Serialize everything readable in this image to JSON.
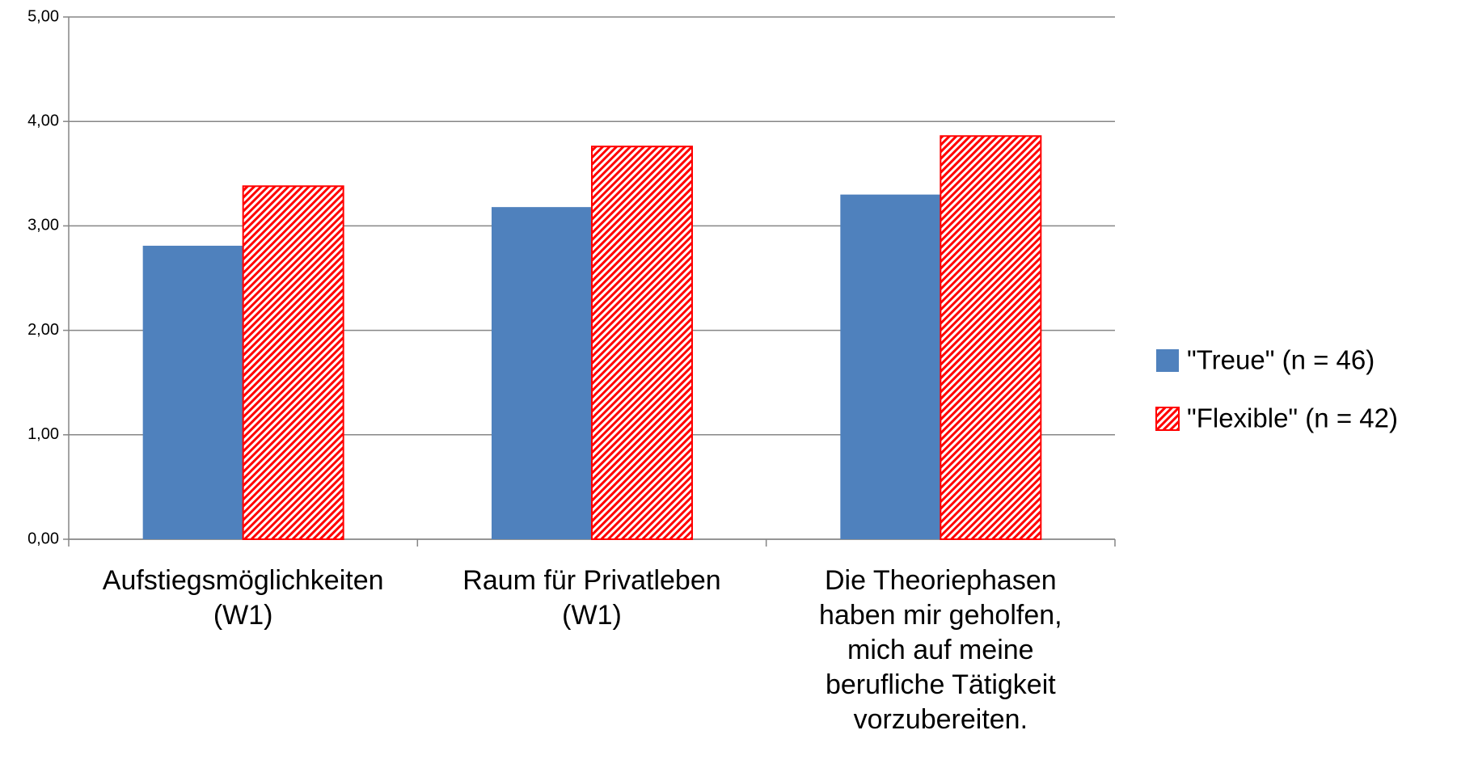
{
  "chart_data": {
    "type": "bar",
    "categories": [
      "Aufstiegsmöglichkeiten\n(W1)",
      "Raum für Privatleben\n(W1)",
      "Die Theoriephasen\nhaben mir geholfen,\nmich auf meine\nberufliche Tätigkeit\nvorzubereiten."
    ],
    "series": [
      {
        "name": "\"Treue\" (n = 46)",
        "color": "#4f81bd",
        "values": [
          2.81,
          3.18,
          3.3
        ]
      },
      {
        "name": "\"Flexible\" (n = 42)",
        "color": "#ff0000",
        "pattern": "diagonal-stripes",
        "values": [
          3.38,
          3.76,
          3.86
        ]
      }
    ],
    "ylim": [
      0,
      5
    ],
    "yticks": [
      {
        "value": 0,
        "label": "0,00"
      },
      {
        "value": 1,
        "label": "1,00"
      },
      {
        "value": 2,
        "label": "2,00"
      },
      {
        "value": 3,
        "label": "3,00"
      },
      {
        "value": 4,
        "label": "4,00"
      },
      {
        "value": 5,
        "label": "5,00"
      }
    ],
    "grid": true,
    "legend": "right"
  }
}
